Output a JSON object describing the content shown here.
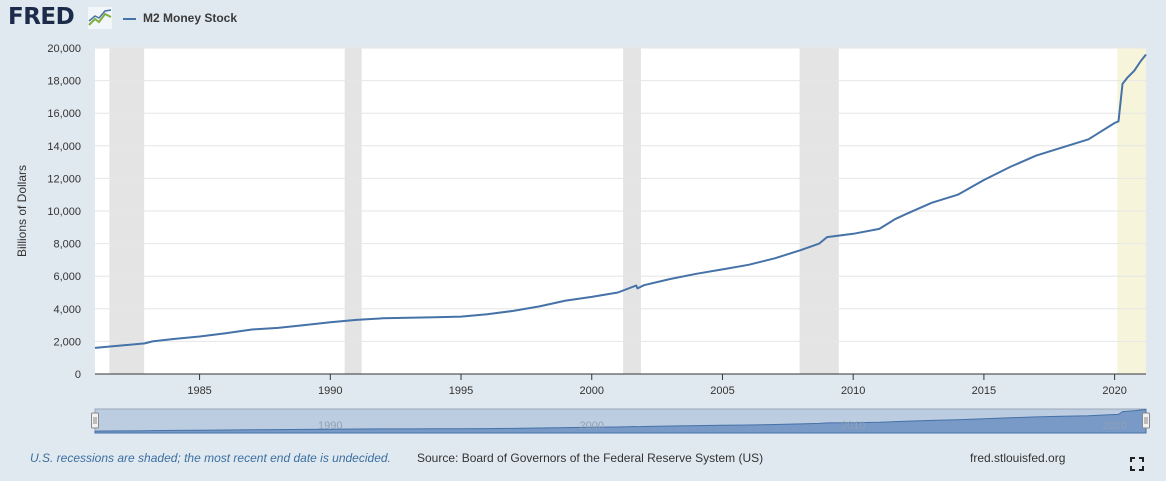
{
  "header": {
    "logo_text": "FRED",
    "logo_mark_icon": "fred-trend-icon",
    "legend_label": "M2 Money Stock"
  },
  "chart_data": {
    "type": "line",
    "title": "",
    "xlabel": "",
    "ylabel": "Billions of Dollars",
    "xlim": [
      1981.0,
      2021.2
    ],
    "ylim": [
      0,
      20000
    ],
    "grid": true,
    "legend": "top-left",
    "x_ticks": [
      1985,
      1990,
      1995,
      2000,
      2005,
      2010,
      2015,
      2020
    ],
    "x_tick_labels": [
      "1985",
      "1990",
      "1995",
      "2000",
      "2005",
      "2010",
      "2015",
      "2020"
    ],
    "y_ticks": [
      0,
      2000,
      4000,
      6000,
      8000,
      10000,
      12000,
      14000,
      16000,
      18000,
      20000
    ],
    "y_tick_labels": [
      "0",
      "2,000",
      "4,000",
      "6,000",
      "8,000",
      "10,000",
      "12,000",
      "14,000",
      "16,000",
      "18,000",
      "20,000"
    ],
    "series": [
      {
        "name": "M2 Money Stock",
        "color": "#4572a7",
        "points": [
          [
            1981.0,
            1600
          ],
          [
            1982.0,
            1750
          ],
          [
            1982.9,
            1880
          ],
          [
            1983.2,
            2000
          ],
          [
            1984.0,
            2150
          ],
          [
            1985.0,
            2300
          ],
          [
            1986.0,
            2500
          ],
          [
            1987.0,
            2730
          ],
          [
            1988.0,
            2830
          ],
          [
            1989.0,
            3000
          ],
          [
            1990.0,
            3170
          ],
          [
            1991.0,
            3320
          ],
          [
            1992.0,
            3420
          ],
          [
            1993.0,
            3450
          ],
          [
            1994.0,
            3480
          ],
          [
            1995.0,
            3520
          ],
          [
            1996.0,
            3670
          ],
          [
            1997.0,
            3870
          ],
          [
            1998.0,
            4150
          ],
          [
            1999.0,
            4500
          ],
          [
            2000.0,
            4730
          ],
          [
            2001.0,
            5000
          ],
          [
            2001.7,
            5430
          ],
          [
            2001.75,
            5250
          ],
          [
            2002.0,
            5450
          ],
          [
            2003.0,
            5830
          ],
          [
            2004.0,
            6150
          ],
          [
            2005.0,
            6420
          ],
          [
            2006.0,
            6700
          ],
          [
            2007.0,
            7100
          ],
          [
            2008.0,
            7600
          ],
          [
            2008.7,
            8000
          ],
          [
            2009.0,
            8400
          ],
          [
            2010.0,
            8600
          ],
          [
            2011.0,
            8900
          ],
          [
            2011.6,
            9500
          ],
          [
            2012.0,
            9800
          ],
          [
            2013.0,
            10500
          ],
          [
            2014.0,
            11000
          ],
          [
            2015.0,
            11900
          ],
          [
            2016.0,
            12700
          ],
          [
            2017.0,
            13400
          ],
          [
            2018.0,
            13900
          ],
          [
            2019.0,
            14400
          ],
          [
            2020.0,
            15400
          ],
          [
            2020.15,
            15500
          ],
          [
            2020.3,
            17800
          ],
          [
            2020.5,
            18200
          ],
          [
            2020.75,
            18600
          ],
          [
            2021.0,
            19200
          ],
          [
            2021.2,
            19600
          ]
        ]
      }
    ],
    "recessions": [
      {
        "start": 1981.55,
        "end": 1982.88
      },
      {
        "start": 1990.55,
        "end": 1991.2
      },
      {
        "start": 2001.2,
        "end": 2001.88
      },
      {
        "start": 2007.95,
        "end": 2009.45
      },
      {
        "start": 2020.1,
        "end": 2021.2,
        "undecided": true
      }
    ],
    "navigator": {
      "tick_labels": [
        "1990",
        "2000",
        "2010",
        "2020"
      ],
      "tick_years": [
        1990,
        2000,
        2010,
        2020
      ]
    }
  },
  "footer": {
    "recession_note": "U.S. recessions are shaded; the most recent end date is undecided.",
    "source": "Source: Board of Governors of the Federal Reserve System (US)",
    "site": "fred.stlouisfed.org",
    "fullscreen_icon": "fullscreen-icon"
  }
}
